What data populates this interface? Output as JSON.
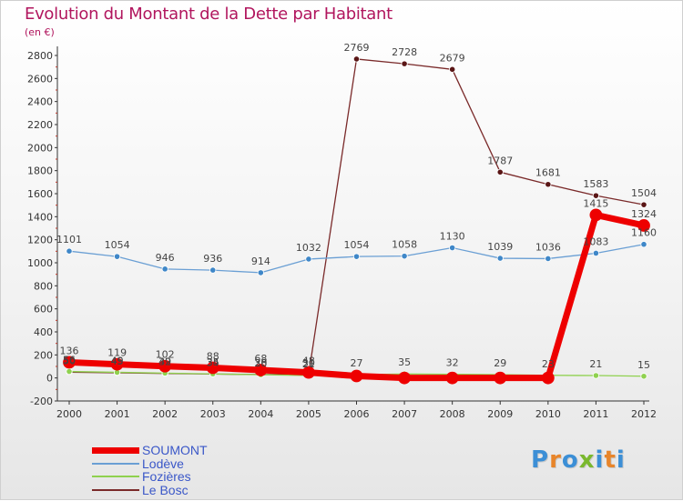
{
  "title": "Evolution du Montant de la Dette par Habitant",
  "subtitle": "(en €)",
  "logo": {
    "text": "Proxiti",
    "colors": [
      "#3c8fd6",
      "#e8852a",
      "#3c8fd6",
      "#7ab82e",
      "#3c8fd6",
      "#e8852a",
      "#3c8fd6"
    ]
  },
  "chart_data": {
    "type": "line",
    "x": [
      "2000",
      "2001",
      "2002",
      "2003",
      "2004",
      "2005",
      "2006",
      "2007",
      "2008",
      "2009",
      "2010",
      "2011",
      "2012"
    ],
    "ylim": [
      -200,
      2800
    ],
    "yticks": [
      -200,
      0,
      200,
      400,
      600,
      800,
      1000,
      1200,
      1400,
      1600,
      1800,
      2000,
      2200,
      2400,
      2600,
      2800
    ],
    "grid": false,
    "legend_position": "bottom-left",
    "series": [
      {
        "name": "SOUMONT",
        "color": "#ee0000",
        "values": [
          136,
          119,
          102,
          88,
          68,
          48,
          17,
          0,
          0,
          0,
          0,
          1415,
          1324
        ],
        "labels": [
          "136",
          "119",
          "102",
          "88",
          "68",
          "48",
          "",
          "",
          "",
          "",
          "",
          "1415",
          "1324"
        ]
      },
      {
        "name": "Lodève",
        "color": "#6a9fd4",
        "values": [
          1101,
          1054,
          946,
          936,
          914,
          1032,
          1054,
          1058,
          1130,
          1039,
          1036,
          1083,
          1160
        ],
        "labels": [
          "1101",
          "1054",
          "946",
          "936",
          "914",
          "1032",
          "1054",
          "1058",
          "1130",
          "1039",
          "1036",
          "1083",
          "1160"
        ]
      },
      {
        "name": "Fozières",
        "color": "#8fd14f",
        "values": [
          56,
          49,
          42,
          35,
          28,
          21,
          27,
          35,
          32,
          29,
          23,
          21,
          15
        ],
        "labels": [
          "56",
          "49",
          "42",
          "35",
          "28",
          "21",
          "27",
          "35",
          "32",
          "29",
          "23",
          "21",
          "15"
        ]
      },
      {
        "name": "Le Bosc",
        "color": "#7a2a2a",
        "values": [
          50,
          45,
          39,
          34,
          30,
          30,
          2769,
          2728,
          2679,
          1787,
          1681,
          1583,
          1504
        ],
        "labels": [
          "50",
          "45",
          "39",
          "34",
          "30",
          "30",
          "2769",
          "2728",
          "2679",
          "1787",
          "1681",
          "1583",
          "1504"
        ]
      }
    ]
  }
}
